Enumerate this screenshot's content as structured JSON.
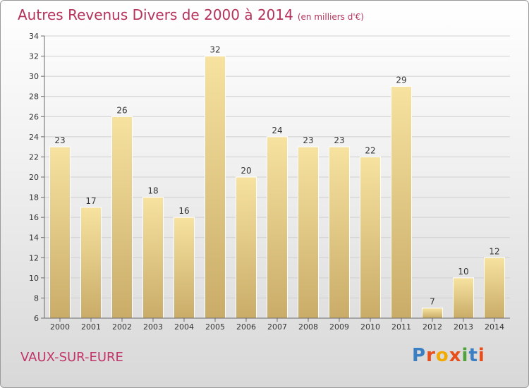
{
  "header": {
    "title": "Autres Revenus Divers de 2000 à 2014",
    "unit": "(en milliers d'€)"
  },
  "footer": {
    "location": "VAUX-SUR-EURE",
    "logo_text": "Proxiti",
    "logo_colors": [
      "#3a7fc4",
      "#e84e1b",
      "#f2a900",
      "#e84e1b",
      "#4fa33a",
      "#3a7fc4",
      "#e84e1b"
    ]
  },
  "colors": {
    "title": "#b5325a",
    "location": "#c2346a",
    "bar_light": "#f7e2a0",
    "bar_dark": "#c9ac68",
    "grid": "#d0d0d0",
    "axis": "#6a6a6a"
  },
  "chart_data": {
    "type": "bar",
    "title": "Autres Revenus Divers de 2000 à 2014",
    "xlabel": "",
    "ylabel": "",
    "categories": [
      "2000",
      "2001",
      "2002",
      "2003",
      "2004",
      "2005",
      "2006",
      "2007",
      "2008",
      "2009",
      "2010",
      "2011",
      "2012",
      "2013",
      "2014"
    ],
    "values": [
      23,
      17,
      26,
      18,
      16,
      32,
      20,
      24,
      23,
      23,
      22,
      29,
      7,
      10,
      12
    ],
    "ylim": [
      6,
      34
    ],
    "yticks": [
      6,
      8,
      10,
      12,
      14,
      16,
      18,
      20,
      22,
      24,
      26,
      28,
      30,
      32,
      34
    ],
    "grid": true,
    "legend": "none"
  }
}
